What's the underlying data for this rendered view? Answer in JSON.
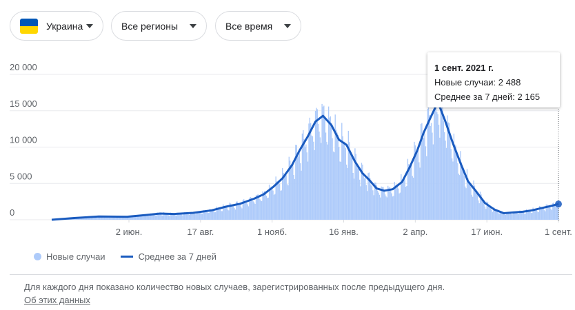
{
  "filters": {
    "country": "Украина",
    "region": "Все регионы",
    "period": "Все время"
  },
  "colors": {
    "bars": "#aecbfa",
    "average_line": "#1a5bbf",
    "grid": "#e8eaed",
    "axis_text": "#5f6368"
  },
  "tooltip": {
    "date": "1 сент. 2021 г.",
    "new_cases": "Новые случаи: 2 488",
    "average": "Среднее за 7 дней: 2 165"
  },
  "legend": {
    "bars_label": "Новые случаи",
    "line_label": "Среднее за 7 дней"
  },
  "footer": {
    "note": "Для каждого дня показано количество новых случаев, зарегистрированных после предыдущего дня.",
    "link": "Об этих данных"
  },
  "chart_data": {
    "type": "bar",
    "x_unit": "day index from first reported day (≈ 2020-03-12)",
    "yticks": [
      "0",
      "5 000",
      "10 000",
      "15 000",
      "20 000"
    ],
    "ytick_values": [
      0,
      5000,
      10000,
      15000,
      20000
    ],
    "ylim": [
      0,
      21000
    ],
    "xticks": [
      {
        "label": "2 июн.",
        "day": 82
      },
      {
        "label": "17 авг.",
        "day": 158
      },
      {
        "label": "1 нояб.",
        "day": 234
      },
      {
        "label": "16 янв.",
        "day": 310
      },
      {
        "label": "2 апр.",
        "day": 386
      },
      {
        "label": "17 июн.",
        "day": 462
      },
      {
        "label": "1 сент.",
        "day": 538
      }
    ],
    "series": [
      {
        "name": "Среднее за 7 дней",
        "points": [
          [
            0,
            0
          ],
          [
            25,
            250
          ],
          [
            50,
            450
          ],
          [
            80,
            420
          ],
          [
            100,
            650
          ],
          [
            115,
            850
          ],
          [
            130,
            800
          ],
          [
            150,
            950
          ],
          [
            170,
            1300
          ],
          [
            185,
            1800
          ],
          [
            200,
            2200
          ],
          [
            215,
            2900
          ],
          [
            225,
            3500
          ],
          [
            235,
            4500
          ],
          [
            245,
            5700
          ],
          [
            255,
            7500
          ],
          [
            263,
            9500
          ],
          [
            272,
            11500
          ],
          [
            280,
            13500
          ],
          [
            288,
            14300
          ],
          [
            297,
            13000
          ],
          [
            305,
            11000
          ],
          [
            313,
            10300
          ],
          [
            322,
            8000
          ],
          [
            330,
            6400
          ],
          [
            337,
            5500
          ],
          [
            345,
            4300
          ],
          [
            353,
            4000
          ],
          [
            362,
            4200
          ],
          [
            372,
            5200
          ],
          [
            380,
            7200
          ],
          [
            388,
            9500
          ],
          [
            395,
            12000
          ],
          [
            402,
            14000
          ],
          [
            410,
            16200
          ],
          [
            418,
            13500
          ],
          [
            426,
            10500
          ],
          [
            434,
            7800
          ],
          [
            442,
            5300
          ],
          [
            450,
            4000
          ],
          [
            460,
            2300
          ],
          [
            470,
            1400
          ],
          [
            480,
            900
          ],
          [
            490,
            1000
          ],
          [
            500,
            1100
          ],
          [
            510,
            1300
          ],
          [
            520,
            1600
          ],
          [
            530,
            1900
          ],
          [
            538,
            2165
          ]
        ]
      },
      {
        "name": "Новые случаи",
        "style": "daily bars with weekly variation around the 7-day average",
        "last_value": 2488
      }
    ]
  }
}
